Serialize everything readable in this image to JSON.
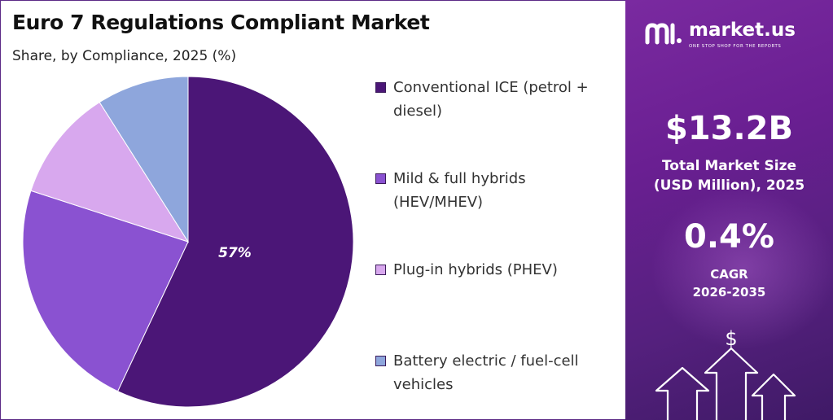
{
  "chart_data": {
    "type": "pie",
    "title": "Euro 7 Regulations Compliant Market",
    "subtitle": "Share, by Compliance, 2025 (%)",
    "slices": [
      {
        "label": "Conventional ICE (petrol + diesel)",
        "legend_lines": [
          "Conventional ICE (petrol +",
          "diesel)"
        ],
        "value": 57,
        "display": "57%",
        "color": "#4b1677"
      },
      {
        "label": "Mild & full hybrids (HEV/MHEV)",
        "legend_lines": [
          "Mild & full hybrids",
          "(HEV/MHEV)"
        ],
        "value": 23,
        "display": "",
        "color": "#8a52d1"
      },
      {
        "label": "Plug-in hybrids (PHEV)",
        "legend_lines": [
          "Plug-in hybrids (PHEV)"
        ],
        "value": 11,
        "display": "",
        "color": "#d8a8ee"
      },
      {
        "label": "Battery electric / fuel-cell vehicles",
        "legend_lines": [
          "Battery electric / fuel-cell",
          "vehicles"
        ],
        "value": 9,
        "display": "",
        "color": "#8ea6dc"
      }
    ],
    "legend_position": "right"
  },
  "brand": {
    "name": "market.us",
    "tagline": "ONE STOP SHOP FOR THE REPORTS"
  },
  "stats": {
    "market_size_value": "$13.2B",
    "market_size_label_1": "Total Market Size",
    "market_size_label_2": "(USD Million), 2025",
    "cagr_value": "0.4%",
    "cagr_label_1": "CAGR",
    "cagr_label_2": "2026-2035"
  },
  "decor": {
    "dollar_glyph": "$"
  }
}
